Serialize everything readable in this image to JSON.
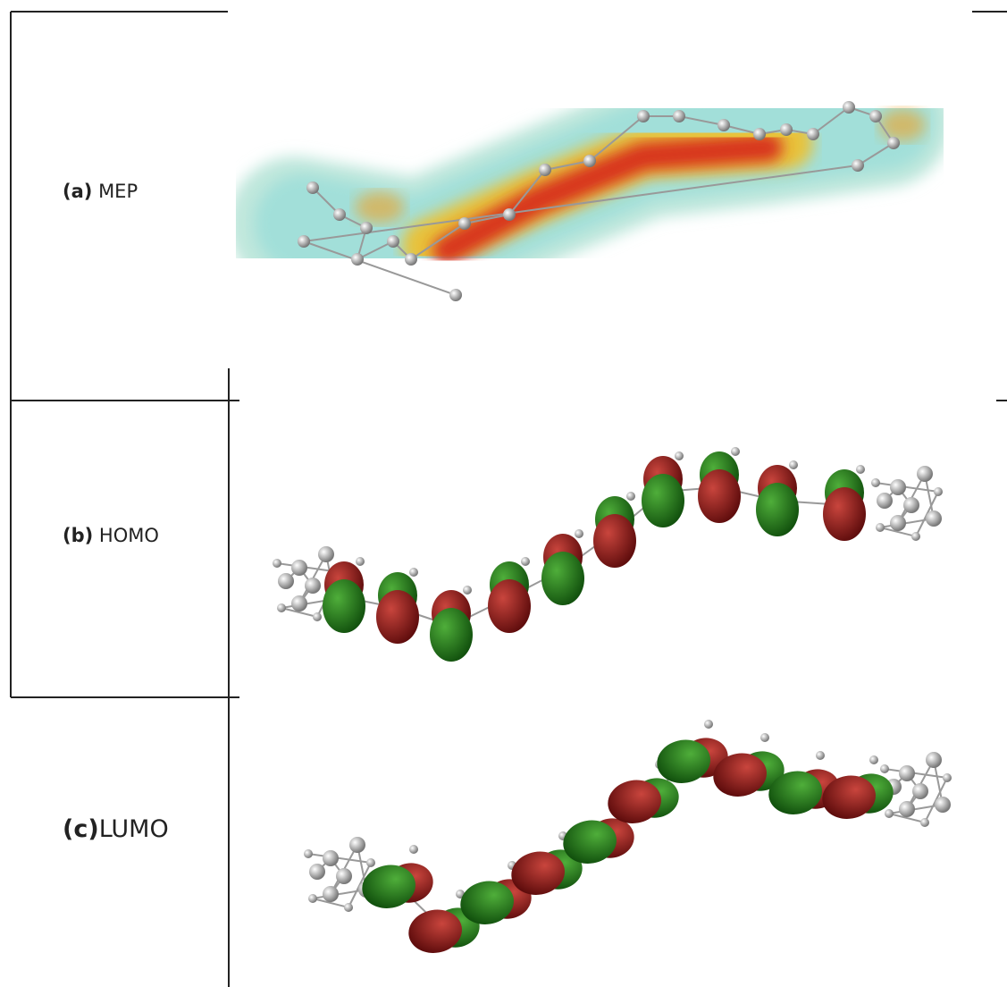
{
  "table": {
    "rows": [
      {
        "tag": "(a)",
        "label": "MEP"
      },
      {
        "tag": "(b)",
        "label": "HOMO"
      },
      {
        "tag": "(c)",
        "label": "LUMO"
      }
    ]
  }
}
